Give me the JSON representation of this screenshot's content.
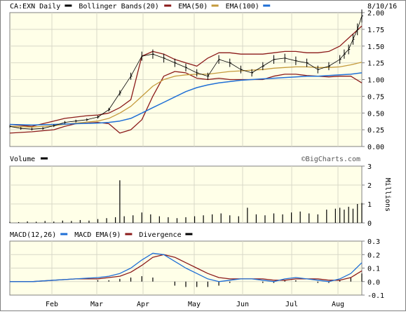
{
  "chart_data": [
    {
      "panel": "price",
      "type": "line",
      "legend": [
        {
          "label": "CA:EXN Daily",
          "color": "#000000"
        },
        {
          "label": "Bollinger Bands(20)",
          "color": "#8b1a1a"
        },
        {
          "label": "EMA(50)",
          "color": "#c49a3c"
        },
        {
          "label": "EMA(100)",
          "color": "#1f6fd6"
        }
      ],
      "date_label": "8/10/16",
      "x_labels": [
        "Feb",
        "Mar",
        "Apr",
        "May",
        "Jun",
        "Jul",
        "Aug"
      ],
      "y_ticks": [
        "2.00",
        "1.75",
        "1.50",
        "1.25",
        "1.00",
        "0.75",
        "0.50",
        "0.25",
        "0.00"
      ],
      "ylim": [
        0,
        2.0
      ],
      "series": [
        {
          "name": "CA:EXN Daily",
          "x": [
            0,
            5,
            10,
            15,
            20,
            25,
            30,
            35,
            40,
            45,
            50,
            55,
            60,
            65,
            70,
            75,
            80,
            85,
            90,
            95,
            100,
            105,
            110,
            115,
            120,
            125,
            130,
            135,
            140,
            145,
            150,
            152,
            154,
            156,
            158,
            160
          ],
          "values": [
            0.3,
            0.27,
            0.26,
            0.27,
            0.31,
            0.36,
            0.38,
            0.4,
            0.44,
            0.55,
            0.8,
            1.05,
            1.35,
            1.38,
            1.32,
            1.25,
            1.18,
            1.1,
            1.05,
            1.3,
            1.25,
            1.15,
            1.1,
            1.2,
            1.3,
            1.32,
            1.28,
            1.25,
            1.15,
            1.2,
            1.3,
            1.38,
            1.45,
            1.6,
            1.75,
            1.95
          ]
        },
        {
          "name": "Bollinger Bands(20)",
          "x": [
            0,
            10,
            20,
            25,
            30,
            35,
            40,
            45,
            50,
            55,
            60,
            65,
            70,
            75,
            80,
            85,
            90,
            95,
            100,
            105,
            110,
            115,
            120,
            125,
            130,
            135,
            140,
            145,
            150,
            155,
            160
          ],
          "values": [
            0.33,
            0.3,
            0.38,
            0.42,
            0.44,
            0.46,
            0.47,
            0.5,
            0.58,
            0.7,
            1.35,
            1.42,
            1.38,
            1.3,
            1.25,
            1.2,
            1.32,
            1.4,
            1.4,
            1.38,
            1.38,
            1.38,
            1.4,
            1.42,
            1.42,
            1.4,
            1.4,
            1.42,
            1.5,
            1.65,
            1.8
          ]
        },
        {
          "name": "Bollinger Bands(20) lower",
          "x": [
            0,
            10,
            20,
            25,
            30,
            35,
            40,
            45,
            50,
            55,
            60,
            65,
            70,
            75,
            80,
            85,
            90,
            95,
            100,
            105,
            110,
            115,
            120,
            125,
            130,
            135,
            140,
            145,
            150,
            155,
            160
          ],
          "values": [
            0.2,
            0.22,
            0.25,
            0.3,
            0.34,
            0.35,
            0.36,
            0.34,
            0.2,
            0.25,
            0.4,
            0.75,
            1.05,
            1.12,
            1.1,
            1.02,
            1.0,
            1.02,
            1.0,
            1.0,
            1.0,
            1.0,
            1.05,
            1.08,
            1.08,
            1.06,
            1.05,
            1.04,
            1.05,
            1.05,
            0.95
          ]
        },
        {
          "name": "EMA(50)",
          "x": [
            0,
            10,
            20,
            30,
            40,
            45,
            50,
            55,
            60,
            65,
            70,
            75,
            80,
            85,
            90,
            95,
            100,
            105,
            110,
            115,
            120,
            125,
            130,
            135,
            140,
            145,
            150,
            155,
            160
          ],
          "values": [
            0.3,
            0.29,
            0.31,
            0.35,
            0.38,
            0.42,
            0.5,
            0.6,
            0.75,
            0.9,
            1.0,
            1.05,
            1.07,
            1.08,
            1.08,
            1.1,
            1.12,
            1.13,
            1.14,
            1.15,
            1.17,
            1.18,
            1.19,
            1.19,
            1.18,
            1.18,
            1.19,
            1.22,
            1.26
          ]
        },
        {
          "name": "EMA(100)",
          "x": [
            0,
            10,
            20,
            30,
            40,
            45,
            50,
            55,
            60,
            65,
            70,
            75,
            80,
            85,
            90,
            95,
            100,
            105,
            110,
            115,
            120,
            125,
            130,
            135,
            140,
            145,
            150,
            155,
            160
          ],
          "values": [
            0.33,
            0.32,
            0.33,
            0.34,
            0.35,
            0.36,
            0.38,
            0.42,
            0.5,
            0.58,
            0.66,
            0.74,
            0.82,
            0.88,
            0.92,
            0.95,
            0.97,
            0.99,
            1.0,
            1.01,
            1.02,
            1.03,
            1.04,
            1.05,
            1.05,
            1.06,
            1.07,
            1.08,
            1.1
          ]
        }
      ]
    },
    {
      "panel": "volume",
      "type": "bar",
      "legend": [
        {
          "label": "Volume",
          "color": "#000000"
        }
      ],
      "brand": "©BigCharts.com",
      "y_ticks": [
        "3",
        "2",
        "1",
        "0"
      ],
      "ylabel": "Millions",
      "ylim": [
        0,
        3
      ],
      "x": [
        0,
        4,
        8,
        12,
        16,
        20,
        24,
        28,
        32,
        36,
        40,
        44,
        48,
        50,
        52,
        56,
        60,
        64,
        68,
        72,
        76,
        80,
        84,
        88,
        92,
        96,
        100,
        104,
        108,
        112,
        116,
        120,
        124,
        128,
        132,
        136,
        140,
        144,
        148,
        150,
        152,
        154,
        156,
        158,
        160
      ],
      "values": [
        0.05,
        0.04,
        0.08,
        0.06,
        0.1,
        0.07,
        0.12,
        0.1,
        0.15,
        0.12,
        0.2,
        0.25,
        0.3,
        2.25,
        0.35,
        0.4,
        0.55,
        0.45,
        0.35,
        0.3,
        0.25,
        0.3,
        0.35,
        0.4,
        0.45,
        0.5,
        0.4,
        0.35,
        0.8,
        0.45,
        0.4,
        0.5,
        0.45,
        0.55,
        0.6,
        0.5,
        0.45,
        0.7,
        0.75,
        0.8,
        0.7,
        0.85,
        0.75,
        1.0,
        1.05
      ]
    },
    {
      "panel": "macd",
      "type": "line",
      "legend": [
        {
          "label": "MACD(12,26)",
          "color": "#1f6fd6"
        },
        {
          "label": "MACD EMA(9)",
          "color": "#8b1a1a"
        },
        {
          "label": "Divergence",
          "color": "#000000"
        }
      ],
      "y_ticks": [
        "0.3",
        "0.2",
        "0.1",
        "0.0",
        "-0.1"
      ],
      "ylim": [
        -0.1,
        0.3
      ],
      "series": [
        {
          "name": "MACD(12,26)",
          "x": [
            0,
            10,
            20,
            30,
            40,
            45,
            50,
            55,
            60,
            65,
            70,
            75,
            80,
            85,
            90,
            95,
            100,
            105,
            110,
            115,
            120,
            125,
            130,
            135,
            140,
            145,
            150,
            155,
            160
          ],
          "values": [
            0.0,
            0.0,
            0.01,
            0.02,
            0.03,
            0.04,
            0.06,
            0.1,
            0.16,
            0.21,
            0.2,
            0.15,
            0.1,
            0.06,
            0.02,
            0.0,
            0.01,
            0.02,
            0.02,
            0.01,
            0.0,
            0.02,
            0.03,
            0.02,
            0.01,
            0.0,
            0.02,
            0.06,
            0.14
          ]
        },
        {
          "name": "MACD EMA(9)",
          "x": [
            0,
            10,
            20,
            30,
            40,
            45,
            50,
            55,
            60,
            65,
            70,
            75,
            80,
            85,
            90,
            95,
            100,
            105,
            110,
            115,
            120,
            125,
            130,
            135,
            140,
            145,
            150,
            155,
            160
          ],
          "values": [
            0.0,
            0.0,
            0.01,
            0.02,
            0.02,
            0.03,
            0.04,
            0.07,
            0.12,
            0.18,
            0.2,
            0.18,
            0.14,
            0.1,
            0.06,
            0.03,
            0.02,
            0.02,
            0.02,
            0.02,
            0.01,
            0.01,
            0.02,
            0.02,
            0.02,
            0.01,
            0.01,
            0.03,
            0.08
          ]
        },
        {
          "name": "Divergence",
          "x": [
            0,
            10,
            20,
            30,
            40,
            45,
            50,
            55,
            60,
            65,
            70,
            75,
            80,
            85,
            90,
            95,
            100,
            105,
            110,
            115,
            120,
            125,
            130,
            135,
            140,
            145,
            150,
            155,
            160
          ],
          "values": [
            0.0,
            0.0,
            0.0,
            0.0,
            0.01,
            0.01,
            0.02,
            0.03,
            0.04,
            0.03,
            0.0,
            -0.03,
            -0.04,
            -0.04,
            -0.04,
            -0.03,
            -0.01,
            0.0,
            0.0,
            -0.01,
            -0.01,
            0.01,
            0.01,
            0.0,
            -0.01,
            -0.01,
            0.01,
            0.03,
            0.06
          ]
        }
      ]
    }
  ]
}
